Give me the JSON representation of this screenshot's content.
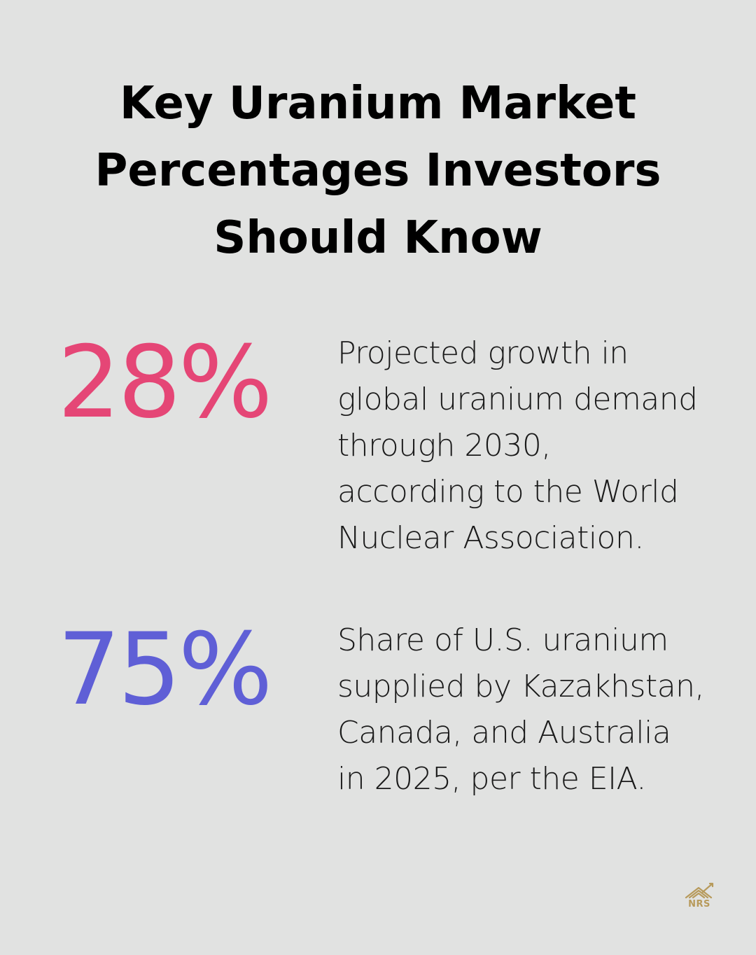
{
  "title": {
    "line1": "Key Uranium Market",
    "line2": "Percentages Investors",
    "line3": "Should Know"
  },
  "stats": [
    {
      "value": "28%",
      "color": "#e54676",
      "description_lines": [
        "Projected growth in",
        "global uranium demand",
        "through 2030,",
        "according to the World",
        "Nuclear Association."
      ]
    },
    {
      "value": "75%",
      "color": "#5f5fd6",
      "description_lines": [
        "Share of U.S. uranium",
        "supplied by Kazakhstan,",
        "Canada, and Australia",
        "in 2025, per the EIA."
      ]
    }
  ],
  "logo": {
    "text": "NRS",
    "icon": "house-chart-icon",
    "color": "#b79a5b"
  }
}
